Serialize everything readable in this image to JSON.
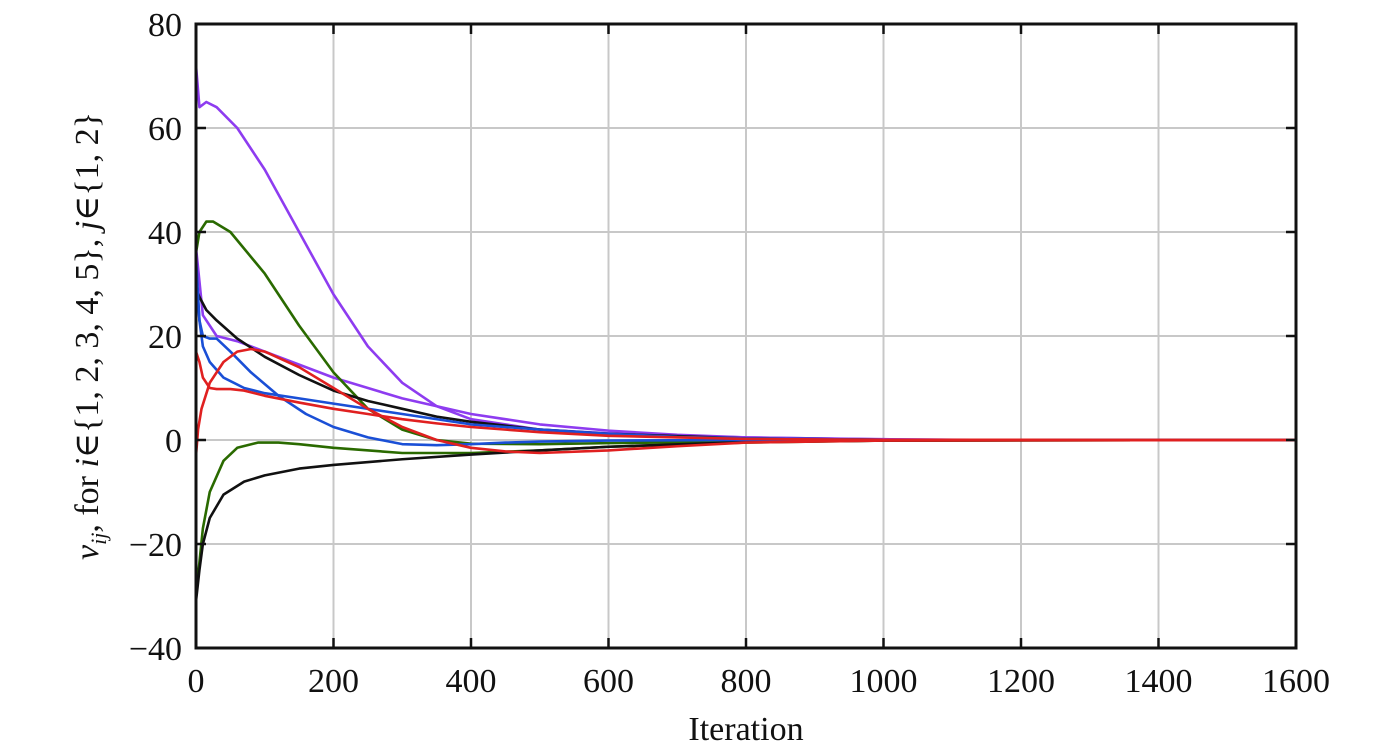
{
  "chart_data": {
    "type": "line",
    "xlabel": "Iteration",
    "ylabel": "v_ij, for i∈{1, 2, 3, 4, 5}, j∈{1, 2}",
    "ylabel_parts": {
      "var": "v",
      "sub": "ij",
      "after_var": ", for ",
      "i": "i",
      "i_set": "∈{1, 2, 3, 4, 5}, ",
      "j": "j",
      "j_set": "∈{1, 2}"
    },
    "xlim": [
      0,
      1600
    ],
    "ylim": [
      -40,
      80
    ],
    "grid": true,
    "x_ticks": [
      0,
      200,
      400,
      600,
      800,
      1000,
      1200,
      1400,
      1600
    ],
    "y_ticks": [
      -40,
      -20,
      0,
      20,
      40,
      60,
      80
    ],
    "x_tick_labels": [
      "0",
      "200",
      "400",
      "600",
      "800",
      "1000",
      "1200",
      "1400",
      "1600"
    ],
    "y_tick_labels": [
      "−40",
      "−20",
      "0",
      "20",
      "40",
      "60",
      "80"
    ],
    "series": [
      {
        "color": "#8e3cf0",
        "x": [
          0,
          5,
          15,
          30,
          60,
          100,
          150,
          200,
          250,
          300,
          350,
          400,
          500,
          600,
          700,
          800,
          900,
          1000,
          1100,
          1200,
          1400,
          1600
        ],
        "y": [
          72,
          64,
          65,
          64,
          60,
          52,
          40,
          28,
          18,
          11,
          6.5,
          4,
          2,
          1.3,
          0.8,
          0.5,
          0.3,
          0.15,
          0.05,
          0,
          0,
          0
        ]
      },
      {
        "color": "#8e3cf0",
        "x": [
          0,
          10,
          30,
          60,
          100,
          150,
          200,
          300,
          400,
          500,
          600,
          700,
          800,
          1000,
          1200,
          1600
        ],
        "y": [
          37,
          24,
          20,
          19,
          17,
          14.5,
          12,
          8,
          5,
          3,
          1.8,
          1,
          0.5,
          0.1,
          0,
          0
        ]
      },
      {
        "color": "#2a6a00",
        "x": [
          0,
          5,
          15,
          25,
          50,
          100,
          150,
          200,
          250,
          300,
          350,
          400,
          500,
          600,
          800,
          1000,
          1600
        ],
        "y": [
          36,
          40,
          42,
          42,
          40,
          32,
          22,
          13,
          6,
          2,
          0,
          -0.7,
          -0.8,
          -0.6,
          -0.3,
          -0.1,
          0
        ]
      },
      {
        "color": "#2a6a00",
        "x": [
          0,
          10,
          20,
          40,
          60,
          90,
          120,
          150,
          200,
          300,
          400,
          500,
          600,
          800,
          1000,
          1600
        ],
        "y": [
          -30,
          -17,
          -10,
          -4,
          -1.5,
          -0.5,
          -0.5,
          -0.8,
          -1.5,
          -2.5,
          -2.5,
          -2,
          -1.3,
          -0.5,
          -0.1,
          0
        ]
      },
      {
        "color": "#111111",
        "x": [
          0,
          5,
          15,
          30,
          60,
          100,
          150,
          200,
          250,
          300,
          350,
          400,
          500,
          600,
          800,
          1000,
          1600
        ],
        "y": [
          29,
          27.5,
          25,
          23,
          19.5,
          16,
          12.5,
          9.5,
          7.5,
          6,
          4.5,
          3.5,
          2,
          1.2,
          0.3,
          0.05,
          0
        ]
      },
      {
        "color": "#111111",
        "x": [
          0,
          5,
          10,
          20,
          40,
          70,
          100,
          150,
          200,
          300,
          400,
          500,
          600,
          800,
          1000,
          1600
        ],
        "y": [
          -31,
          -25,
          -20,
          -15,
          -10.5,
          -8,
          -6.8,
          -5.5,
          -4.8,
          -3.7,
          -2.8,
          -2,
          -1.3,
          -0.4,
          -0.1,
          0
        ]
      },
      {
        "color": "#1a4fd6",
        "x": [
          0,
          5,
          10,
          20,
          30,
          50,
          80,
          120,
          160,
          200,
          250,
          300,
          350,
          400,
          450,
          500,
          600,
          800,
          1000,
          1600
        ],
        "y": [
          33,
          23,
          20,
          19.5,
          19.5,
          17,
          13,
          8.5,
          5,
          2.5,
          0.5,
          -0.8,
          -1,
          -0.8,
          -0.5,
          -0.3,
          -0.1,
          0,
          0,
          0
        ]
      },
      {
        "color": "#1a4fd6",
        "x": [
          0,
          5,
          10,
          20,
          40,
          70,
          100,
          150,
          200,
          300,
          400,
          500,
          600,
          700,
          800,
          1000,
          1600
        ],
        "y": [
          35,
          23,
          18,
          15,
          12,
          10,
          9,
          8,
          7,
          5,
          3,
          2,
          1.2,
          0.6,
          0.3,
          0.05,
          0
        ]
      },
      {
        "color": "#e02020",
        "x": [
          0,
          5,
          10,
          20,
          30,
          50,
          70,
          100,
          150,
          200,
          250,
          300,
          350,
          400,
          500,
          600,
          800,
          1000,
          1600
        ],
        "y": [
          17,
          15,
          12,
          10,
          9.8,
          9.8,
          9.5,
          8.5,
          7.2,
          6,
          5,
          4,
          3.2,
          2.5,
          1.5,
          0.8,
          0.2,
          0.05,
          0
        ]
      },
      {
        "color": "#e02020",
        "x": [
          0,
          3,
          8,
          20,
          40,
          60,
          80,
          100,
          150,
          200,
          250,
          300,
          350,
          400,
          450,
          500,
          600,
          700,
          800,
          1000,
          1600
        ],
        "y": [
          -3,
          2,
          6,
          11,
          15,
          17,
          17.5,
          17,
          14,
          10,
          6,
          2.5,
          0,
          -1.5,
          -2.2,
          -2.5,
          -2,
          -1.2,
          -0.5,
          -0.1,
          0
        ]
      }
    ]
  }
}
